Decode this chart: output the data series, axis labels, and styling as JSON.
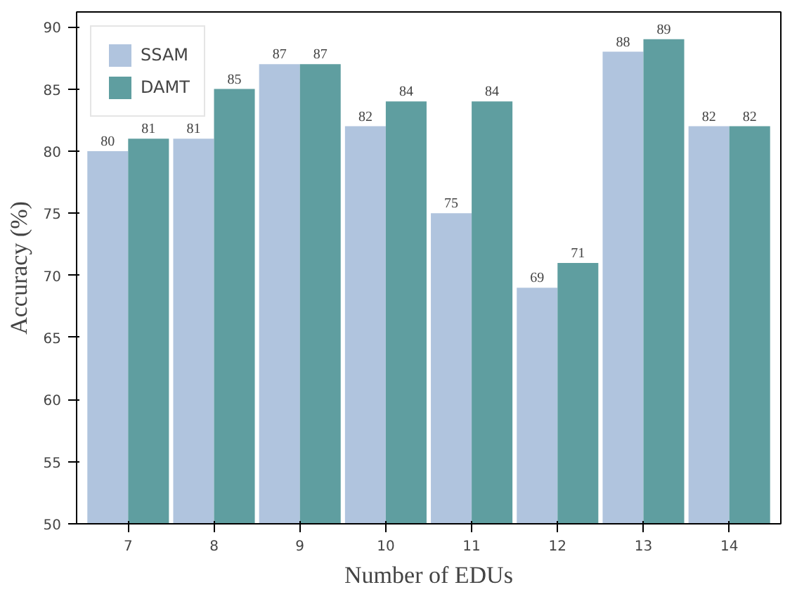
{
  "chart_data": {
    "type": "bar",
    "xlabel": "Number of EDUs",
    "ylabel": "Accuracy (%)",
    "categories": [
      "7",
      "8",
      "9",
      "10",
      "11",
      "12",
      "13",
      "14"
    ],
    "series": [
      {
        "name": "SSAM",
        "color": "#b0c4de",
        "values": [
          80,
          81,
          87,
          82,
          75,
          69,
          88,
          82
        ]
      },
      {
        "name": "DAMT",
        "color": "#5f9ea0",
        "values": [
          81,
          85,
          87,
          84,
          84,
          71,
          89,
          82
        ]
      }
    ],
    "ylim": [
      50,
      91.2
    ],
    "yticks": [
      50,
      55,
      60,
      65,
      70,
      75,
      80,
      85,
      90
    ],
    "data_labels": true,
    "legend": "top left",
    "grid": false
  }
}
